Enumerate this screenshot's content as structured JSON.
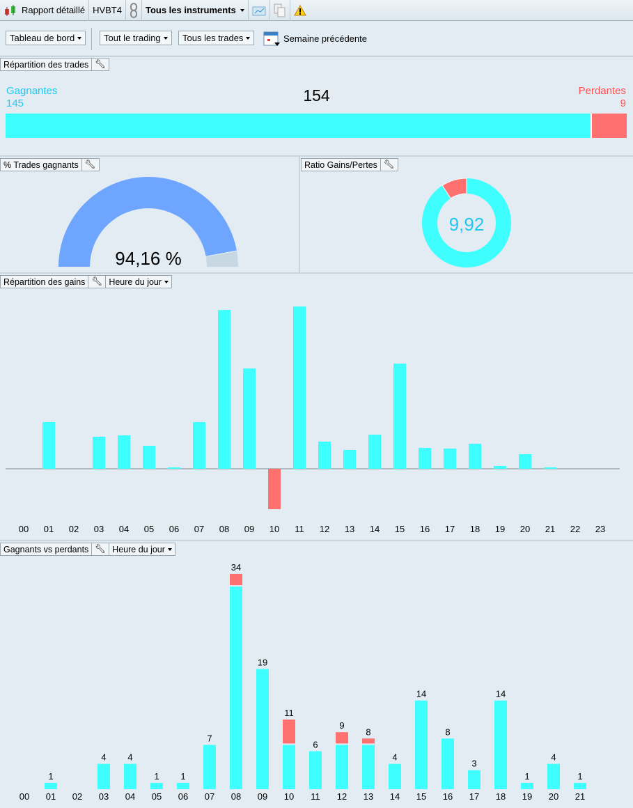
{
  "topbar": {
    "report": "Rapport détaillé",
    "account": "HVBT4",
    "instruments": "Tous les instruments"
  },
  "toolbar": {
    "dashboard": "Tableau de bord",
    "trading": "Tout le trading",
    "trades": "Tous les trades",
    "period": "Semaine précédente"
  },
  "repartition": {
    "title": "Répartition des trades",
    "winners_label": "Gagnantes",
    "winners": "145",
    "total": "154",
    "losers_label": "Perdantes",
    "losers": "9",
    "win_value": 145,
    "loss_value": 9
  },
  "win_pct": {
    "title": "% Trades gagnants",
    "value_text": "94,16 %",
    "value": 94.16
  },
  "ratio": {
    "title": "Ratio Gains/Pertes",
    "value_text": "9,92",
    "value": 9.92
  },
  "colors": {
    "win": "#3ffffe",
    "loss": "#ff7070",
    "gauge": "#6ea6ff",
    "gauge_rest": "#c8d8e2",
    "ratio_text": "#22c8f0"
  },
  "chart_data": [
    {
      "type": "bar",
      "title": "Répartition des gains",
      "selector": "Heure du jour",
      "categories": [
        "00",
        "01",
        "02",
        "03",
        "04",
        "05",
        "06",
        "07",
        "08",
        "09",
        "10",
        "11",
        "12",
        "13",
        "14",
        "15",
        "16",
        "17",
        "18",
        "19",
        "20",
        "21",
        "22",
        "23"
      ],
      "values": [
        0,
        67,
        0,
        46,
        48,
        33,
        2,
        67,
        228,
        144,
        -58,
        233,
        39,
        27,
        49,
        151,
        30,
        29,
        36,
        4,
        21,
        2,
        0,
        0
      ]
    },
    {
      "type": "bar",
      "stacked": true,
      "title": "Gagnants vs perdants",
      "selector": "Heure du jour",
      "categories": [
        "00",
        "01",
        "02",
        "03",
        "04",
        "05",
        "06",
        "07",
        "08",
        "09",
        "10",
        "11",
        "12",
        "13",
        "14",
        "15",
        "16",
        "17",
        "18",
        "19",
        "20",
        "21"
      ],
      "series": [
        {
          "name": "Gagnants",
          "values": [
            0,
            1,
            0,
            4,
            4,
            1,
            1,
            7,
            32,
            19,
            7,
            6,
            7,
            7,
            4,
            14,
            8,
            3,
            14,
            1,
            4,
            1
          ]
        },
        {
          "name": "Perdants",
          "values": [
            0,
            0,
            0,
            0,
            0,
            0,
            0,
            0,
            2,
            0,
            4,
            0,
            2,
            1,
            0,
            0,
            0,
            0,
            0,
            0,
            0,
            0
          ]
        }
      ],
      "totals": [
        "",
        "1",
        "",
        "4",
        "4",
        "1",
        "1",
        "7",
        "34",
        "19",
        "11",
        "6",
        "9",
        "8",
        "4",
        "14",
        "8",
        "3",
        "14",
        "1",
        "4",
        "1"
      ]
    }
  ]
}
